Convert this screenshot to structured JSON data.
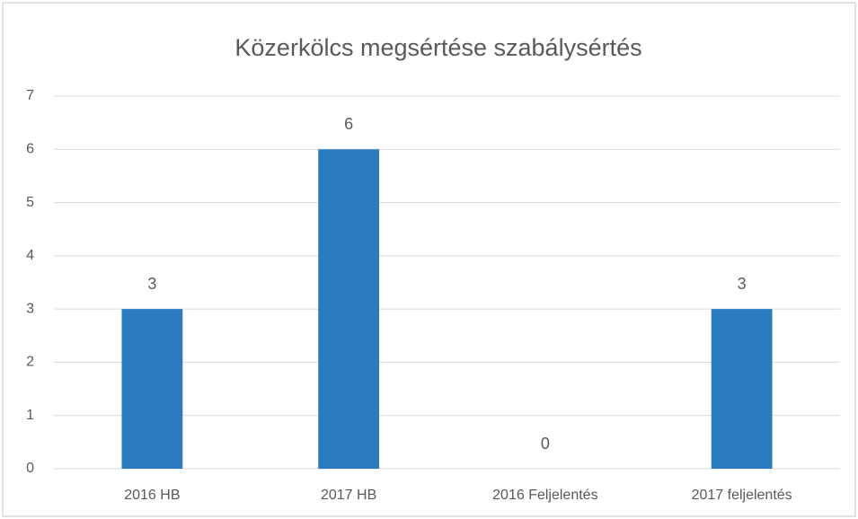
{
  "chart_data": {
    "type": "bar",
    "title": "Közerkölcs megsértése szabálysértés",
    "categories": [
      "2016 HB",
      "2017 HB",
      "2016 Feljelentés",
      "2017 feljelentés"
    ],
    "values": [
      3,
      6,
      0,
      3
    ],
    "color": "#2a7bc0",
    "ylim": [
      0,
      7
    ],
    "yticks": [
      0,
      1,
      2,
      3,
      4,
      5,
      6,
      7
    ],
    "grid": true,
    "data_labels": true
  }
}
